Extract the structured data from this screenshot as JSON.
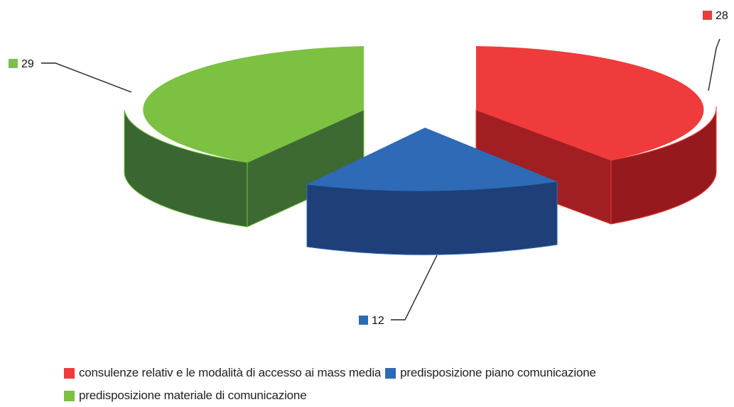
{
  "chart_data": {
    "type": "pie",
    "variant": "3d-exploded",
    "title": "",
    "slices": [
      {
        "label": "consulenze relativ e le modalità di accesso ai mass media",
        "value": 28,
        "color": "#ef3b3b"
      },
      {
        "label": "predisposizione piano comunicazione",
        "value": 12,
        "color": "#2e6ab5"
      },
      {
        "label": "predisposizione materiale di comunicazione",
        "value": 29,
        "color": "#7cc142"
      }
    ],
    "legend": {
      "position": "bottom"
    },
    "data_labels": [
      "28",
      "12",
      "29"
    ]
  }
}
